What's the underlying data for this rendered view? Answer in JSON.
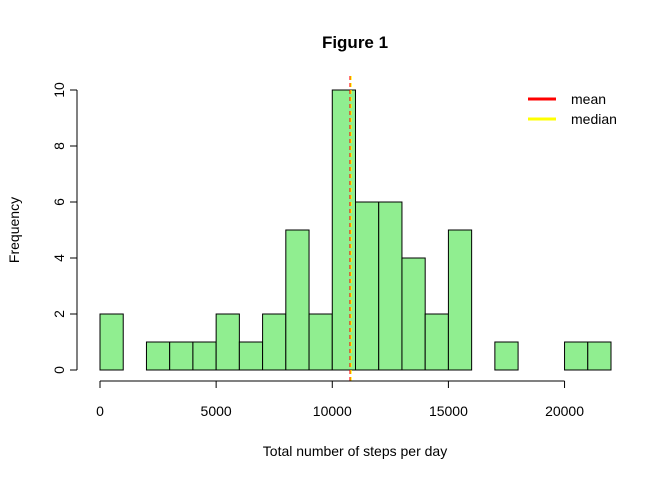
{
  "chart_data": {
    "type": "bar",
    "title": "Figure 1",
    "xlabel": "Total number of steps per day",
    "ylabel": "Frequency",
    "bin_width": 1000,
    "bin_edges_start": 0,
    "counts": [
      2,
      0,
      1,
      1,
      1,
      2,
      1,
      2,
      5,
      2,
      10,
      6,
      6,
      4,
      2,
      5,
      0,
      1,
      0,
      0,
      1,
      1
    ],
    "xlim": [
      0,
      22000
    ],
    "ylim": [
      0,
      10
    ],
    "x_ticks": [
      0,
      5000,
      10000,
      15000,
      20000
    ],
    "x_tick_labels": [
      "0",
      "5000",
      "10000",
      "15000",
      "20000"
    ],
    "y_ticks": [
      0,
      2,
      4,
      6,
      8,
      10
    ],
    "y_tick_labels": [
      "0",
      "2",
      "4",
      "6",
      "8",
      "10"
    ],
    "bar_color": "#90ee90",
    "mean": 10766,
    "median": 10765,
    "mean_color": "#ff0000",
    "median_color": "#ffff00",
    "legend": {
      "position": "top-right",
      "entries": [
        {
          "label": "mean",
          "color": "#ff0000"
        },
        {
          "label": "median",
          "color": "#ffff00"
        }
      ]
    },
    "grid": false
  }
}
